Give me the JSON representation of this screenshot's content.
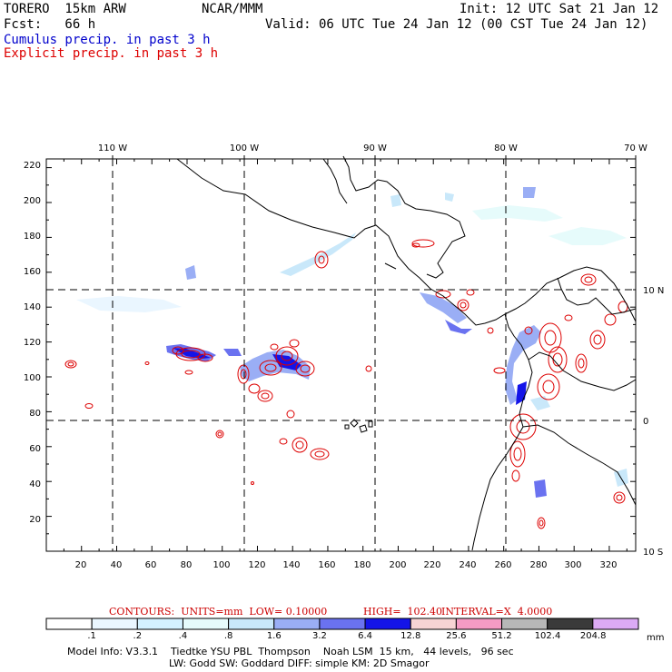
{
  "header": {
    "model": "TORERO  15km ARW",
    "org": "NCAR/MMM",
    "init": "Init: 12 UTC Sat 21 Jan 12",
    "fcst": "Fcst:   66 h",
    "valid": "Valid: 06 UTC Tue 24 Jan 12 (00 CST Tue 24 Jan 12)",
    "field1": "Cumulus precip. in past 3 h",
    "field2": "Explicit precip. in past 3 h"
  },
  "colors": {
    "field1_text": "#0000cc",
    "field2_text": "#dd0000",
    "contour": "#dd0000",
    "coast": "#000000"
  },
  "axes": {
    "top_lon_labels": [
      "110 W",
      "100 W",
      "90 W",
      "80 W",
      "70 W"
    ],
    "right_lat_labels": [
      "10 N",
      "0",
      "10 S"
    ],
    "y_ticks": [
      "220",
      "200",
      "180",
      "160",
      "140",
      "120",
      "100",
      "80",
      "60",
      "40",
      "20"
    ],
    "x_ticks": [
      "20",
      "40",
      "60",
      "80",
      "100",
      "120",
      "140",
      "160",
      "180",
      "200",
      "220",
      "240",
      "260",
      "280",
      "300",
      "320"
    ],
    "x_range": [
      0,
      335
    ],
    "y_range": [
      0,
      225
    ]
  },
  "legend": {
    "contour_note": {
      "contours": "CONTOURS:  UNITS=mm  LOW= 0.10000",
      "high": "HIGH=  102.40",
      "interval": "INTERVAL=X  4.0000"
    },
    "labels": [
      ".1",
      ".2",
      ".4",
      ".8",
      "1.6",
      "3.2",
      "6.4",
      "12.8",
      "25.6",
      "51.2",
      "102.4",
      "204.8"
    ],
    "unit": "mm",
    "colors": [
      "#ffffff",
      "#eaf6ff",
      "#d4f1ff",
      "#e6fbfb",
      "#c9e8fa",
      "#9aaef5",
      "#6a72f0",
      "#1414e8",
      "#f7d4d4",
      "#f59bc4",
      "#b7b7b7",
      "#3a3a3a",
      "#dcaaf5"
    ]
  },
  "footer": {
    "line1": "Model Info: V3.3.1    Tiedtke YSU PBL  Thompson    Noah LSM  15 km,   44 levels,   96 sec",
    "line2": "LW: Godd SW: Goddard DIFF: simple KM: 2D Smagor"
  }
}
